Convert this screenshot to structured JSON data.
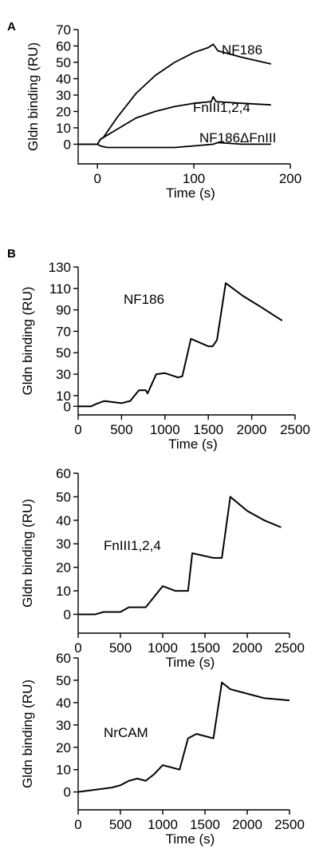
{
  "panel_labels": [
    "A",
    "B"
  ],
  "chart_data": [
    {
      "type": "line",
      "panel": "A",
      "xlabel": "Time (s)",
      "ylabel": "Gldn binding (RU)",
      "xlim": [
        -20,
        200
      ],
      "ylim": [
        -12,
        70
      ],
      "xticks": [
        0,
        100,
        200
      ],
      "yticks": [
        0,
        10,
        20,
        30,
        40,
        50,
        60,
        70
      ],
      "series": [
        {
          "name": "NF186",
          "x": [
            -20,
            -10,
            0,
            3,
            6,
            20,
            40,
            60,
            80,
            100,
            115,
            120,
            125,
            150,
            180
          ],
          "y": [
            0,
            0,
            0,
            3,
            4,
            16,
            31,
            42,
            50,
            56,
            59,
            61,
            57,
            53,
            49
          ]
        },
        {
          "name": "FnIII1,2,4",
          "x": [
            -20,
            -10,
            0,
            3,
            6,
            20,
            40,
            60,
            80,
            100,
            118,
            120,
            123,
            150,
            180
          ],
          "y": [
            0,
            0,
            0,
            3,
            4,
            9,
            16,
            20,
            23,
            25,
            26,
            29,
            26,
            25,
            24
          ]
        },
        {
          "name": "NF186ΔFnIII",
          "x": [
            -20,
            -10,
            0,
            3,
            10,
            20,
            40,
            60,
            80,
            100,
            120,
            125,
            150,
            180
          ],
          "y": [
            0,
            0,
            0,
            -1,
            -2,
            -2,
            -2,
            -2,
            -2,
            -1,
            0,
            1,
            0,
            0
          ]
        }
      ]
    },
    {
      "type": "line",
      "panel": "B",
      "annotation": "NF186",
      "xlabel": "Time (s)",
      "ylabel": "Gldn binding (RU)",
      "xlim": [
        0,
        2500
      ],
      "ylim": [
        -8,
        130
      ],
      "xticks": [
        0,
        500,
        1000,
        1500,
        2000,
        2500
      ],
      "yticks": [
        0,
        10,
        30,
        50,
        70,
        90,
        110,
        130
      ],
      "series": [
        {
          "x": [
            0,
            150,
            200,
            300,
            500,
            600,
            700,
            780,
            800,
            900,
            1000,
            1150,
            1200,
            1300,
            1500,
            1550,
            1600,
            1700,
            1900,
            2100,
            2350
          ],
          "y": [
            0,
            0,
            2,
            5,
            3,
            5,
            15,
            15,
            12,
            30,
            31,
            27,
            28,
            63,
            56,
            56,
            62,
            115,
            103,
            93,
            80
          ]
        }
      ]
    },
    {
      "type": "line",
      "panel": "B",
      "annotation": "FnIII1,2,4",
      "xlabel": "Time (s)",
      "ylabel": "Gldn binding (RU)",
      "xlim": [
        0,
        2500
      ],
      "ylim": [
        -8,
        60
      ],
      "xticks": [
        0,
        500,
        1000,
        1500,
        2000,
        2500
      ],
      "yticks": [
        0,
        10,
        20,
        30,
        40,
        50,
        60
      ],
      "series": [
        {
          "x": [
            0,
            200,
            300,
            500,
            600,
            700,
            800,
            1000,
            1150,
            1300,
            1350,
            1600,
            1700,
            1800,
            2000,
            2200,
            2400
          ],
          "y": [
            0,
            0,
            1,
            1,
            3,
            3,
            3,
            12,
            10,
            10,
            26,
            24,
            24,
            50,
            44,
            40,
            37
          ]
        }
      ]
    },
    {
      "type": "line",
      "panel": "B",
      "annotation": "NrCAM",
      "xlabel": "Time (s)",
      "ylabel": "Gldn binding (RU)",
      "xlim": [
        0,
        2500
      ],
      "ylim": [
        -8,
        60
      ],
      "xticks": [
        0,
        500,
        1000,
        1500,
        2000,
        2500
      ],
      "yticks": [
        0,
        10,
        20,
        30,
        40,
        50,
        60
      ],
      "series": [
        {
          "x": [
            0,
            200,
            400,
            500,
            600,
            700,
            800,
            900,
            1000,
            1100,
            1200,
            1300,
            1400,
            1500,
            1600,
            1700,
            1800,
            2000,
            2200,
            2500
          ],
          "y": [
            0,
            1,
            2,
            3,
            5,
            6,
            5,
            8,
            12,
            11,
            10,
            24,
            26,
            25,
            24,
            49,
            46,
            44,
            42,
            41
          ]
        }
      ]
    }
  ]
}
